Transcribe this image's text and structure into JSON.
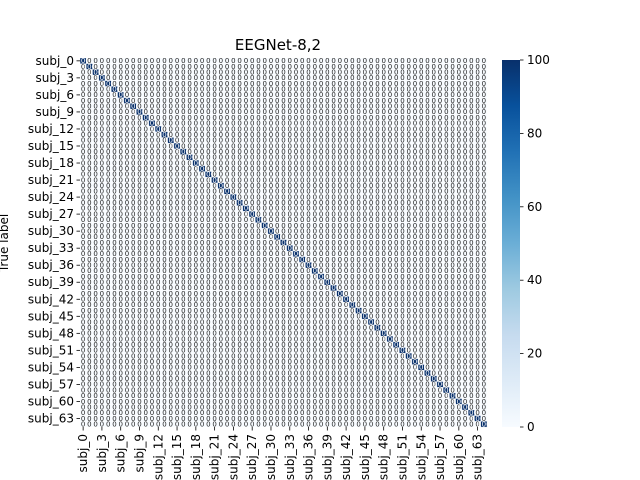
{
  "chart_data": {
    "type": "heatmap",
    "title": "EEGNet-8,2",
    "ylabel": "True label",
    "xlabel": "",
    "n_classes": 65,
    "class_prefix": "subj_",
    "tick_labels_shown": [
      "subj_0",
      "subj_3",
      "subj_6",
      "subj_9",
      "subj_12",
      "subj_15",
      "subj_18",
      "subj_21",
      "subj_24",
      "subj_27",
      "subj_30",
      "subj_33",
      "subj_36",
      "subj_39",
      "subj_42",
      "subj_45",
      "subj_48",
      "subj_51",
      "subj_54",
      "subj_57",
      "subj_60",
      "subj_63"
    ],
    "diagonal_value": 100,
    "off_diagonal_value": 0,
    "annotation_text_off_diagonal": "0",
    "colorbar": {
      "min": 0,
      "max": 100,
      "ticks": [
        0,
        20,
        40,
        60,
        80,
        100
      ],
      "colormap": "Blues",
      "color_low": "#f7fbff",
      "color_high": "#08306b"
    },
    "cell_line_color": "#ffffff",
    "grid": false,
    "legend": "colorbar-right"
  }
}
